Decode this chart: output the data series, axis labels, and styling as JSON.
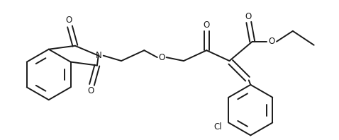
{
  "bg_color": "#ffffff",
  "line_color": "#1a1a1a",
  "line_width": 1.4,
  "font_size": 8.5,
  "figsize": [
    4.78,
    1.98
  ],
  "dpi": 100,
  "xlim": [
    0,
    9.56
  ],
  "ylim": [
    0,
    3.96
  ]
}
